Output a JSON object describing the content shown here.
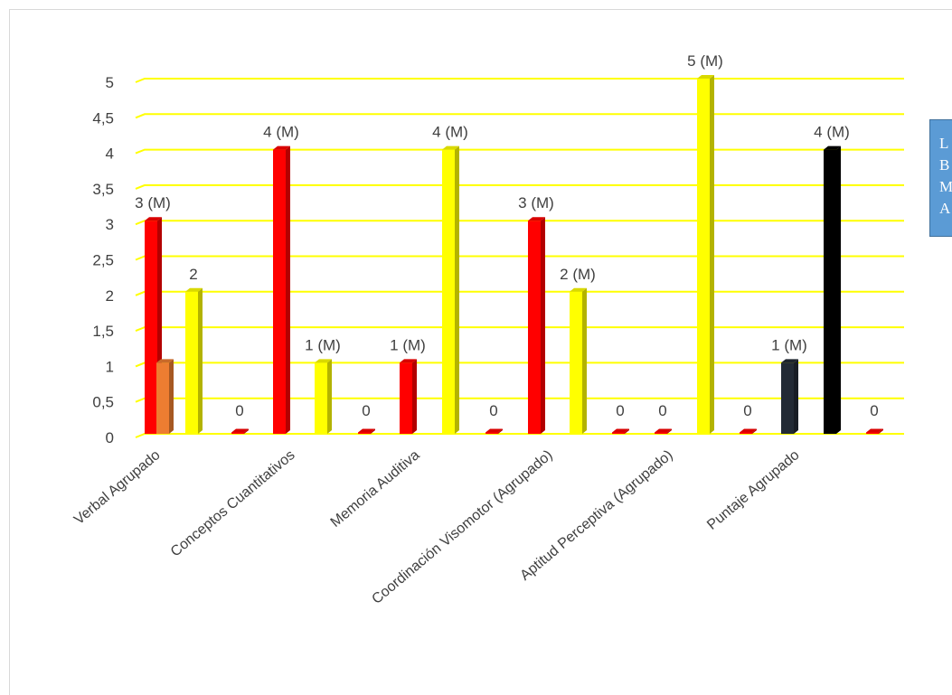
{
  "chart_data": {
    "type": "bar",
    "categories": [
      "Verbal Agrupado",
      "",
      "Conceptos Cuantitativos",
      "",
      "Memoria Auditiva",
      "",
      "Coordinación Visomotor (Agrupado)",
      "",
      "Aptitud Perceptiva (Agrupado)",
      "",
      "Puntaje Agrupado",
      ""
    ],
    "ylim": [
      0,
      5
    ],
    "yticks": [
      "0",
      "0,5",
      "1",
      "1,5",
      "2",
      "2,5",
      "3",
      "3,5",
      "4",
      "4,5",
      "5"
    ],
    "grid": true,
    "colors": {
      "red": "#ff0000",
      "orange": "#ed7d31",
      "yellow": "#ffff00",
      "navy": "#222a35",
      "black": "#000000",
      "grid": "#ffff00"
    },
    "bars": [
      {
        "category": 0,
        "slot": 0,
        "value": 3,
        "label": "3 (M)",
        "color": "red"
      },
      {
        "category": 0,
        "slot": 1,
        "value": 1,
        "label": "",
        "color": "orange"
      },
      {
        "category": 0,
        "slot": 2,
        "value": 2,
        "label": "2",
        "color": "yellow"
      },
      {
        "category": 1,
        "slot": 0,
        "value": 0,
        "label": "0",
        "color": "red"
      },
      {
        "category": 1,
        "slot": 1,
        "value": 4,
        "label": "4 (M)",
        "color": "red"
      },
      {
        "category": 2,
        "slot": 0,
        "value": 1,
        "label": "1 (M)",
        "color": "yellow"
      },
      {
        "category": 3,
        "slot": 0,
        "value": 0,
        "label": "0",
        "color": "red"
      },
      {
        "category": 3,
        "slot": 1,
        "value": 1,
        "label": "1 (M)",
        "color": "red"
      },
      {
        "category": 4,
        "slot": 0,
        "value": 4,
        "label": "4 (M)",
        "color": "yellow"
      },
      {
        "category": 5,
        "slot": 0,
        "value": 0,
        "label": "0",
        "color": "red"
      },
      {
        "category": 5,
        "slot": 1,
        "value": 3,
        "label": "3 (M)",
        "color": "red"
      },
      {
        "category": 6,
        "slot": 0,
        "value": 2,
        "label": "2 (M)",
        "color": "yellow"
      },
      {
        "category": 7,
        "slot": 0,
        "value": 0,
        "label": "0",
        "color": "red"
      },
      {
        "category": 7,
        "slot": 1,
        "value": 0,
        "label": "0",
        "color": "red"
      },
      {
        "category": 8,
        "slot": 0,
        "value": 5,
        "label": "5 (M)",
        "color": "yellow"
      },
      {
        "category": 9,
        "slot": 0,
        "value": 0,
        "label": "0",
        "color": "red"
      },
      {
        "category": 9,
        "slot": 1,
        "value": 1,
        "label": "1 (M)",
        "color": "navy"
      },
      {
        "category": 10,
        "slot": 0,
        "value": 4,
        "label": "4 (M)",
        "color": "black"
      },
      {
        "category": 11,
        "slot": 0,
        "value": 0,
        "label": "0",
        "color": "red"
      }
    ]
  },
  "legend": {
    "items": [
      "L",
      "B",
      "M",
      "A"
    ]
  }
}
